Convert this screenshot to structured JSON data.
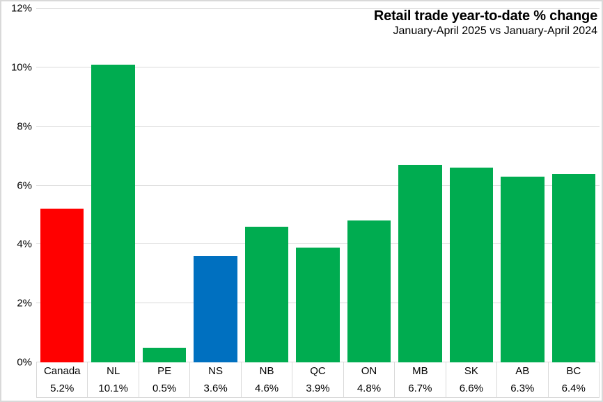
{
  "chart": {
    "title": "Retail trade year-to-date % change",
    "subtitle": "January-April 2025 vs January-April 2024"
  },
  "chart_data": {
    "type": "bar",
    "title": "Retail trade year-to-date % change",
    "subtitle": "January-April 2025 vs January-April 2024",
    "categories": [
      "Canada",
      "NL",
      "PE",
      "NS",
      "NB",
      "QC",
      "ON",
      "MB",
      "SK",
      "AB",
      "BC"
    ],
    "values": [
      5.2,
      10.1,
      0.5,
      3.6,
      4.6,
      3.9,
      4.8,
      6.7,
      6.6,
      6.3,
      6.4
    ],
    "value_labels": [
      "5.2%",
      "10.1%",
      "0.5%",
      "3.6%",
      "4.6%",
      "3.9%",
      "4.8%",
      "6.7%",
      "6.6%",
      "6.3%",
      "6.4%"
    ],
    "bar_colors": [
      "#ff0000",
      "#00ac50",
      "#00ac50",
      "#0070c0",
      "#00ac50",
      "#00ac50",
      "#00ac50",
      "#00ac50",
      "#00ac50",
      "#00ac50",
      "#00ac50"
    ],
    "color_legend": {
      "canada_highlight": "#ff0000",
      "default_province": "#00ac50",
      "nova_scotia_highlight": "#0070c0"
    },
    "xlabel": "",
    "ylabel": "",
    "ylim": [
      0,
      12
    ],
    "ytick_values": [
      0,
      2,
      4,
      6,
      8,
      10,
      12
    ],
    "ytick_labels": [
      "0%",
      "2%",
      "4%",
      "6%",
      "8%",
      "10%",
      "12%"
    ],
    "grid": "horizontal",
    "gridline_color": "#d9d9d9",
    "legend_position": "none"
  }
}
